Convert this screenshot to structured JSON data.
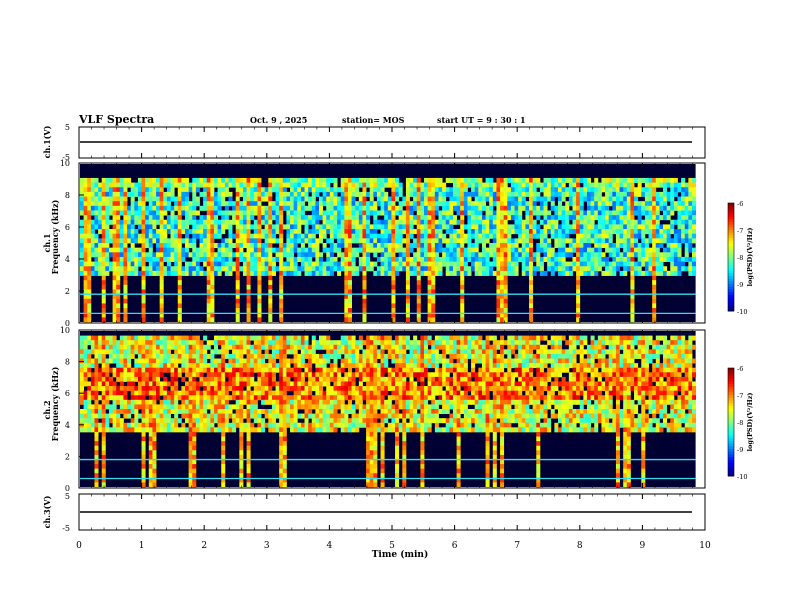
{
  "header": {
    "title": "VLF Spectra",
    "date": "Oct. 9 , 2025",
    "station": "station= MOS",
    "start": "start UT = 9 : 30 : 1"
  },
  "chart_data": [
    {
      "type": "line",
      "panel": "ch1-waveform",
      "ylabel": "ch.1(V)",
      "ylim": [
        -5,
        5
      ],
      "yticks": [
        "5",
        "-5"
      ],
      "x": [
        0,
        10
      ],
      "values": [
        0,
        0
      ]
    },
    {
      "type": "heatmap",
      "panel": "ch1-spectrogram",
      "ylabel": "ch.1\nFrequency (kHz)",
      "ylim": [
        0,
        10
      ],
      "yticks": [
        "0",
        "2",
        "4",
        "6",
        "8",
        "10"
      ],
      "xlim": [
        0,
        9.85
      ],
      "bands": [
        {
          "name": "chorus/hiss",
          "freq_range_khz": [
            2.8,
            9.0
          ],
          "level": -8.3
        },
        {
          "name": "top band",
          "freq_range_khz": [
            8.5,
            9.0
          ],
          "level": -8.0
        },
        {
          "name": "line 1.8 kHz",
          "freq_khz": 1.8,
          "level": -8.5
        },
        {
          "name": "line 0.6 kHz",
          "freq_khz": 0.6,
          "level": -8.5
        }
      ],
      "colorbar": {
        "label": "log(PSD)(V²/Hz)",
        "min": -10,
        "max": -6,
        "ticks": [
          "-6",
          "-7",
          "-8",
          "-9",
          "-10"
        ]
      }
    },
    {
      "type": "heatmap",
      "panel": "ch2-spectrogram",
      "ylabel": "ch.2\nFrequency (kHz)",
      "ylim": [
        0,
        10
      ],
      "yticks": [
        "0",
        "2",
        "4",
        "6",
        "8",
        "10"
      ],
      "xlim": [
        0,
        9.85
      ],
      "bands": [
        {
          "name": "chorus/hiss",
          "freq_range_khz": [
            3.5,
            9.8
          ],
          "level": -7.6
        },
        {
          "name": "peak",
          "freq_range_khz": [
            5.5,
            7.5
          ],
          "level": -7.0
        },
        {
          "name": "line 1.8 kHz",
          "freq_khz": 1.8,
          "level": -8.5
        },
        {
          "name": "line 0.6 kHz",
          "freq_khz": 0.6,
          "level": -8.5
        }
      ],
      "colorbar": {
        "label": "log(PSD)(V²/Hz)",
        "min": -10,
        "max": -6,
        "ticks": [
          "-6",
          "-7",
          "-8",
          "-9",
          "-10"
        ]
      }
    },
    {
      "type": "line",
      "panel": "ch3-waveform",
      "ylabel": "ch.3(V)",
      "ylim": [
        -5,
        5
      ],
      "yticks": [
        "5",
        "-5"
      ],
      "x": [
        0,
        10
      ],
      "values": [
        0,
        0
      ]
    }
  ],
  "xaxis": {
    "label": "Time (min)",
    "ticks": [
      "0",
      "1",
      "2",
      "3",
      "4",
      "5",
      "6",
      "7",
      "8",
      "9",
      "10"
    ],
    "xlim": [
      0,
      10
    ]
  },
  "colors": {
    "background_spec": "#000033",
    "line": "#000000",
    "cyan_line": "#33ddee"
  }
}
